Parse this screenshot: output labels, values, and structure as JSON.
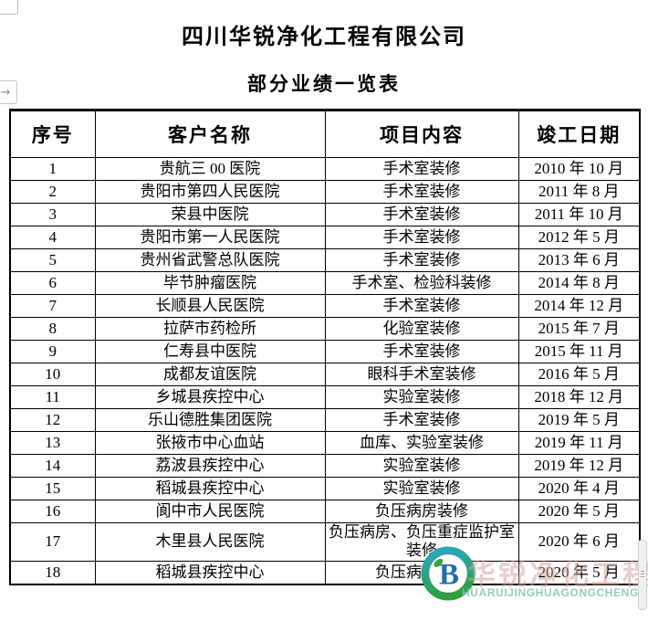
{
  "doc": {
    "title": "四川华锐净化工程有限公司",
    "subtitle": "部分业绩一览表"
  },
  "icons": {
    "expand_arrow": "→"
  },
  "table": {
    "headers": [
      "序号",
      "客户名称",
      "项目内容",
      "竣工日期"
    ],
    "rows": [
      {
        "no": "1",
        "client": "贵航三 00 医院",
        "project": "手术室装修",
        "date": "2010 年 10 月"
      },
      {
        "no": "2",
        "client": "贵阳市第四人民医院",
        "project": "手术室装修",
        "date": "2011 年 8 月"
      },
      {
        "no": "3",
        "client": "荣县中医院",
        "project": "手术室装修",
        "date": "2011 年 10 月"
      },
      {
        "no": "4",
        "client": "贵阳市第一人民医院",
        "project": "手术室装修",
        "date": "2012 年 5 月"
      },
      {
        "no": "5",
        "client": "贵州省武警总队医院",
        "project": "手术室装修",
        "date": "2013 年 6 月"
      },
      {
        "no": "6",
        "client": "毕节肿瘤医院",
        "project": "手术室、检验科装修",
        "date": "2014 年 8 月"
      },
      {
        "no": "7",
        "client": "长顺县人民医院",
        "project": "手术室装修",
        "date": "2014 年 12 月"
      },
      {
        "no": "8",
        "client": "拉萨市药检所",
        "project": "化验室装修",
        "date": "2015 年 7 月"
      },
      {
        "no": "9",
        "client": "仁寿县中医院",
        "project": "手术室装修",
        "date": "2015 年 11 月"
      },
      {
        "no": "10",
        "client": "成都友谊医院",
        "project": "眼科手术室装修",
        "date": "2016 年 5 月"
      },
      {
        "no": "11",
        "client": "乡城县疾控中心",
        "project": "实验室装修",
        "date": "2018 年 12 月"
      },
      {
        "no": "12",
        "client": "乐山德胜集团医院",
        "project": "手术室装修",
        "date": "2019 年 5 月"
      },
      {
        "no": "13",
        "client": "张掖市中心血站",
        "project": "血库、实验室装修",
        "date": "2019 年 11 月"
      },
      {
        "no": "14",
        "client": "荔波县疾控中心",
        "project": "实验室装修",
        "date": "2019 年 12 月"
      },
      {
        "no": "15",
        "client": "稻城县疾控中心",
        "project": "实验室装修",
        "date": "2020 年 4 月"
      },
      {
        "no": "16",
        "client": "阆中市人民医院",
        "project": "负压病房装修",
        "date": "2020 年 5 月"
      },
      {
        "no": "17",
        "client": "木里县人民医院",
        "project": "负压病房、负压重症监护室装修",
        "date": "2020 年 6 月"
      },
      {
        "no": "18",
        "client": "稻城县疾控中心",
        "project": "负压病房装修",
        "date": "2020 年 5 月"
      }
    ]
  },
  "watermark": {
    "text_cn": "华锐净化工程",
    "text_pinyin": "HUARUIJINGHUAGONGCHENG",
    "logo_letter": "B",
    "colors": {
      "ring_teal": "#2aa7c0",
      "ring_green": "#2f9e3f",
      "letter_blue": "#1d6fae",
      "leaf_green": "#3aa33a",
      "text_pink": "#d4a69e",
      "text_teal": "#80c4b6"
    }
  }
}
